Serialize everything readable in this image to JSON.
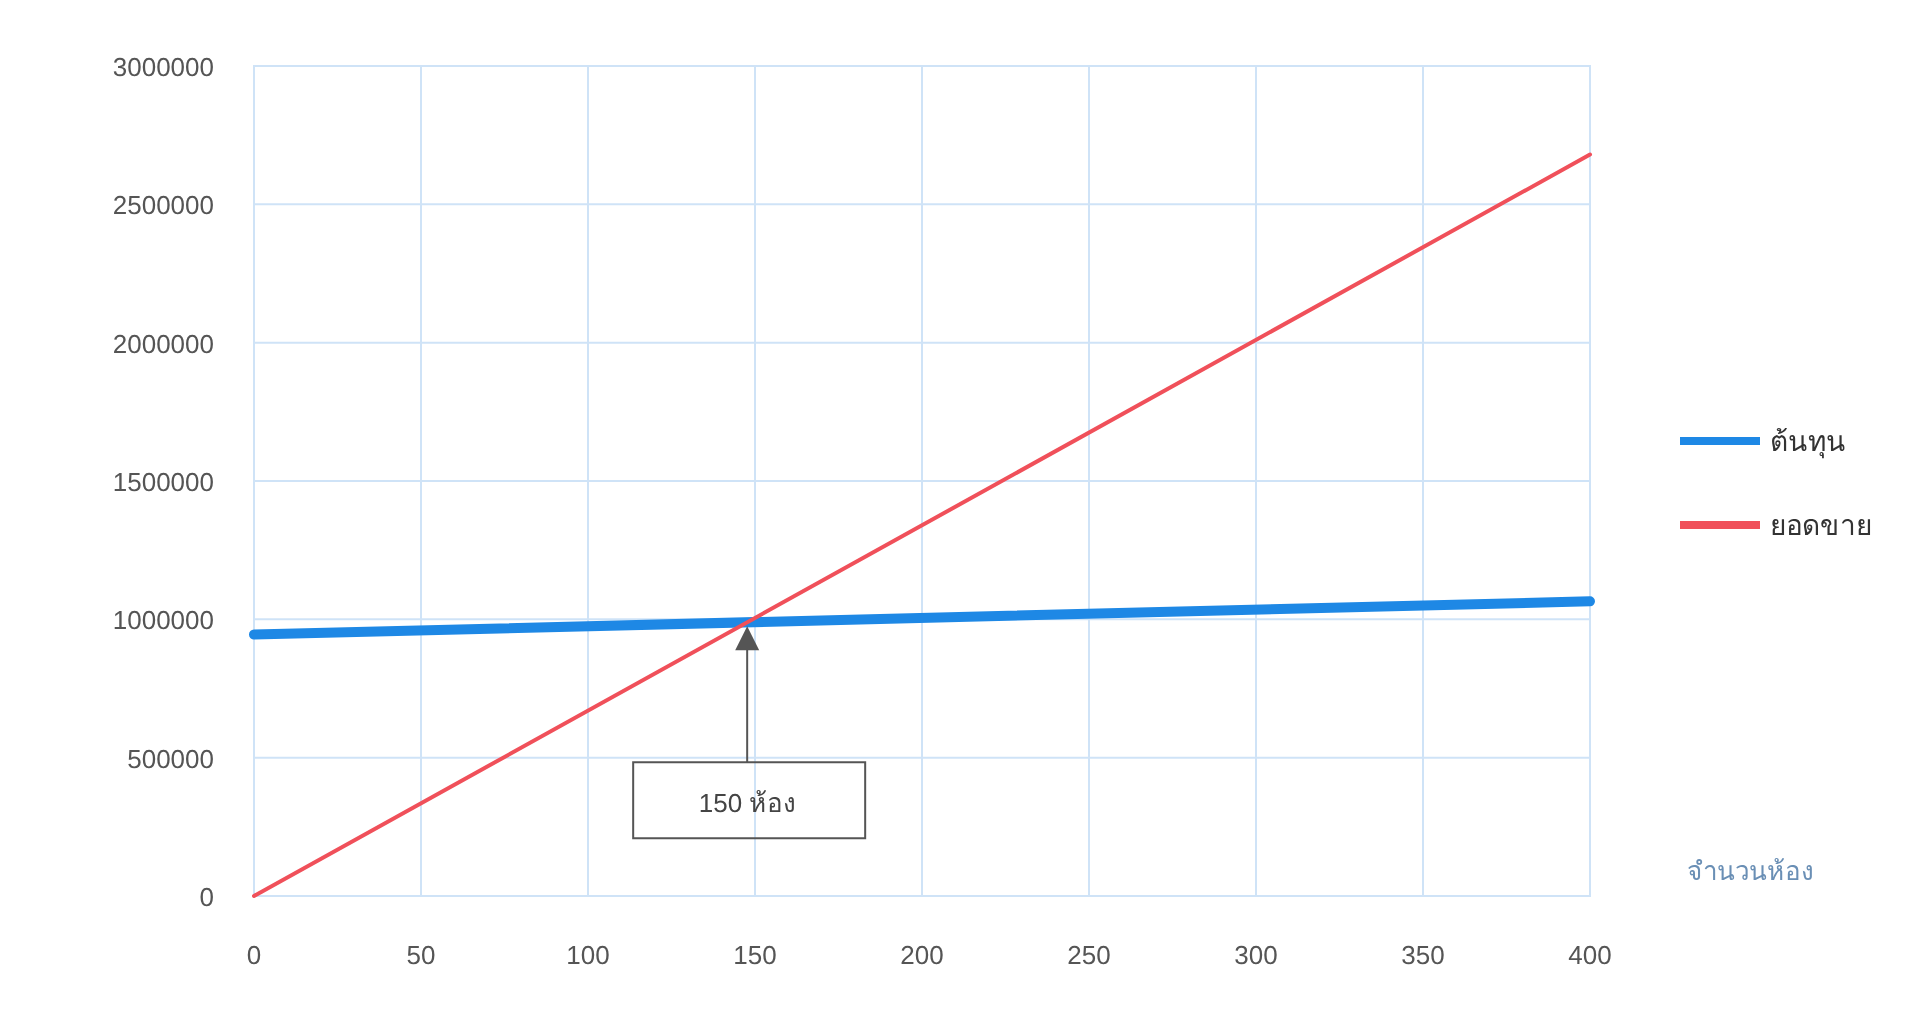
{
  "chart_data": {
    "type": "line",
    "xlabel": "จำนวนห้อง",
    "x": [
      0,
      400
    ],
    "series": [
      {
        "name": "ต้นทุน",
        "color": "#1e88e5",
        "values": [
          945000,
          1065000
        ]
      },
      {
        "name": "ยอดขาย",
        "color": "#f0505a",
        "values": [
          0,
          2680000
        ]
      }
    ],
    "xlim": [
      0,
      400
    ],
    "xticks": [
      0,
      50,
      100,
      150,
      200,
      250,
      300,
      350,
      400
    ],
    "ylim": [
      0,
      3000000
    ],
    "yticks": [
      0,
      500000,
      1000000,
      1500000,
      2000000,
      2500000,
      3000000
    ],
    "grid": true,
    "legend": "right",
    "marker": "none",
    "line_style": "solid",
    "annotations": [
      "150 ห้อง"
    ]
  }
}
